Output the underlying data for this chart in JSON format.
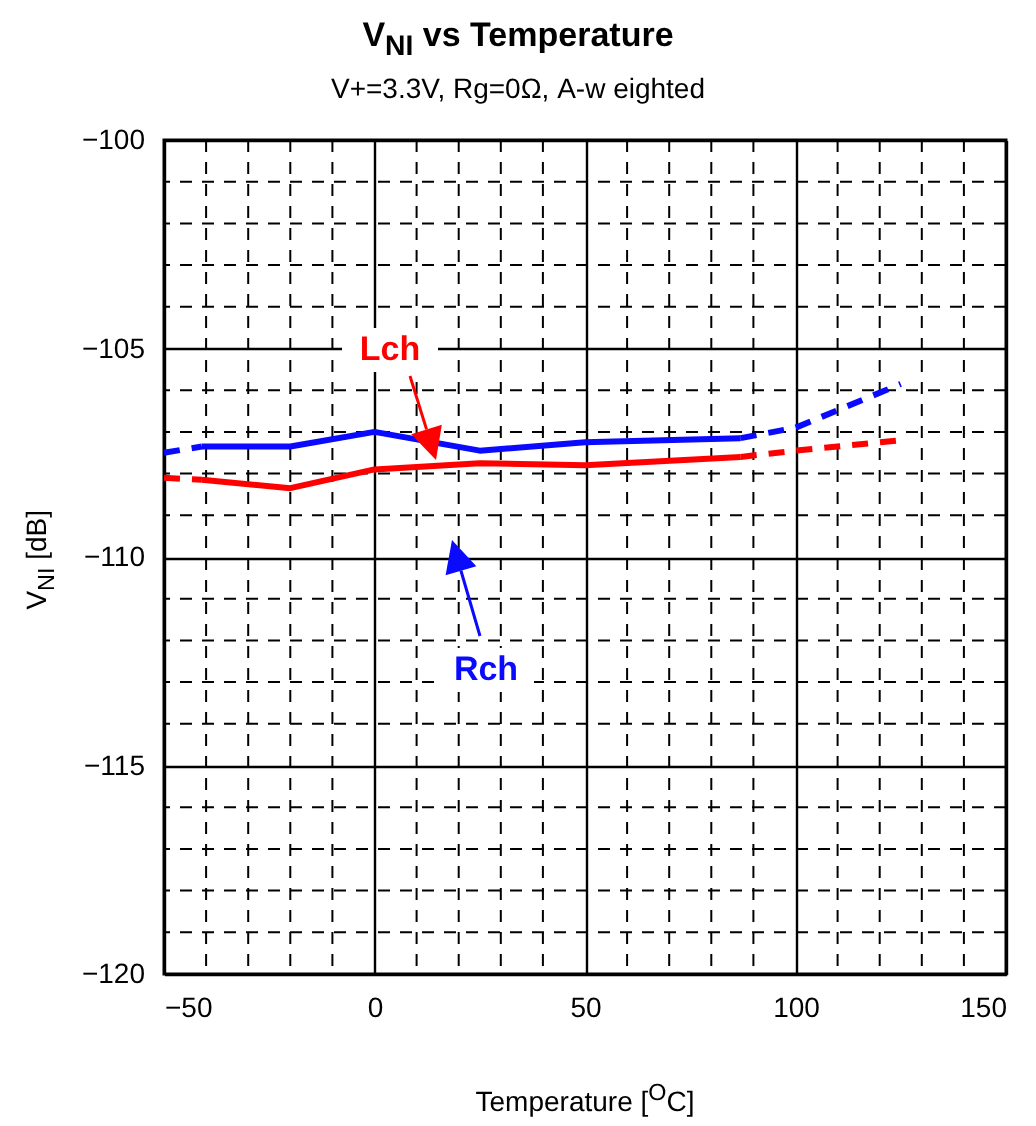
{
  "chart_data": {
    "type": "line",
    "title": "V$_{NI}$ vs Temperature",
    "subtitle": "V+=3.3V, Rg=0Ω, A-w eighted",
    "xlabel": "Temperature [$^{O}$C]",
    "ylabel": "V$_{NI}$ [dB]",
    "xlim": [
      -50,
      150
    ],
    "xticks": [
      -50,
      0,
      50,
      100,
      150
    ],
    "ylim": [
      -120,
      -100
    ],
    "yticks": [
      -120,
      -115,
      -110,
      -105,
      -100
    ],
    "grid": true,
    "series": [
      {
        "name": "Lch",
        "color": "#ff0000",
        "line_style": "solid",
        "x": [
          -41,
          -20,
          0,
          25,
          50,
          87
        ],
        "values": [
          -108.15,
          -108.35,
          -107.9,
          -107.75,
          -107.8,
          -107.6
        ]
      },
      {
        "color": "#ff0000",
        "line_style": "dashed",
        "x": [
          -50,
          -41
        ],
        "values": [
          -108.1,
          -108.15
        ]
      },
      {
        "color": "#ff0000",
        "line_style": "dashed",
        "x": [
          87,
          100,
          125
        ],
        "values": [
          -107.6,
          -107.45,
          -107.2
        ]
      },
      {
        "name": "Rch",
        "color": "#0a0aff",
        "line_style": "solid",
        "x": [
          -41,
          -20,
          0,
          25,
          50,
          87
        ],
        "values": [
          -107.35,
          -107.35,
          -107.0,
          -107.45,
          -107.25,
          -107.15
        ]
      },
      {
        "color": "#0a0aff",
        "line_style": "dashed",
        "x": [
          -50,
          -41
        ],
        "values": [
          -107.5,
          -107.35
        ]
      },
      {
        "color": "#0a0aff",
        "line_style": "dashed",
        "x": [
          87,
          100,
          125
        ],
        "values": [
          -107.15,
          -106.9,
          -105.85
        ]
      }
    ]
  }
}
